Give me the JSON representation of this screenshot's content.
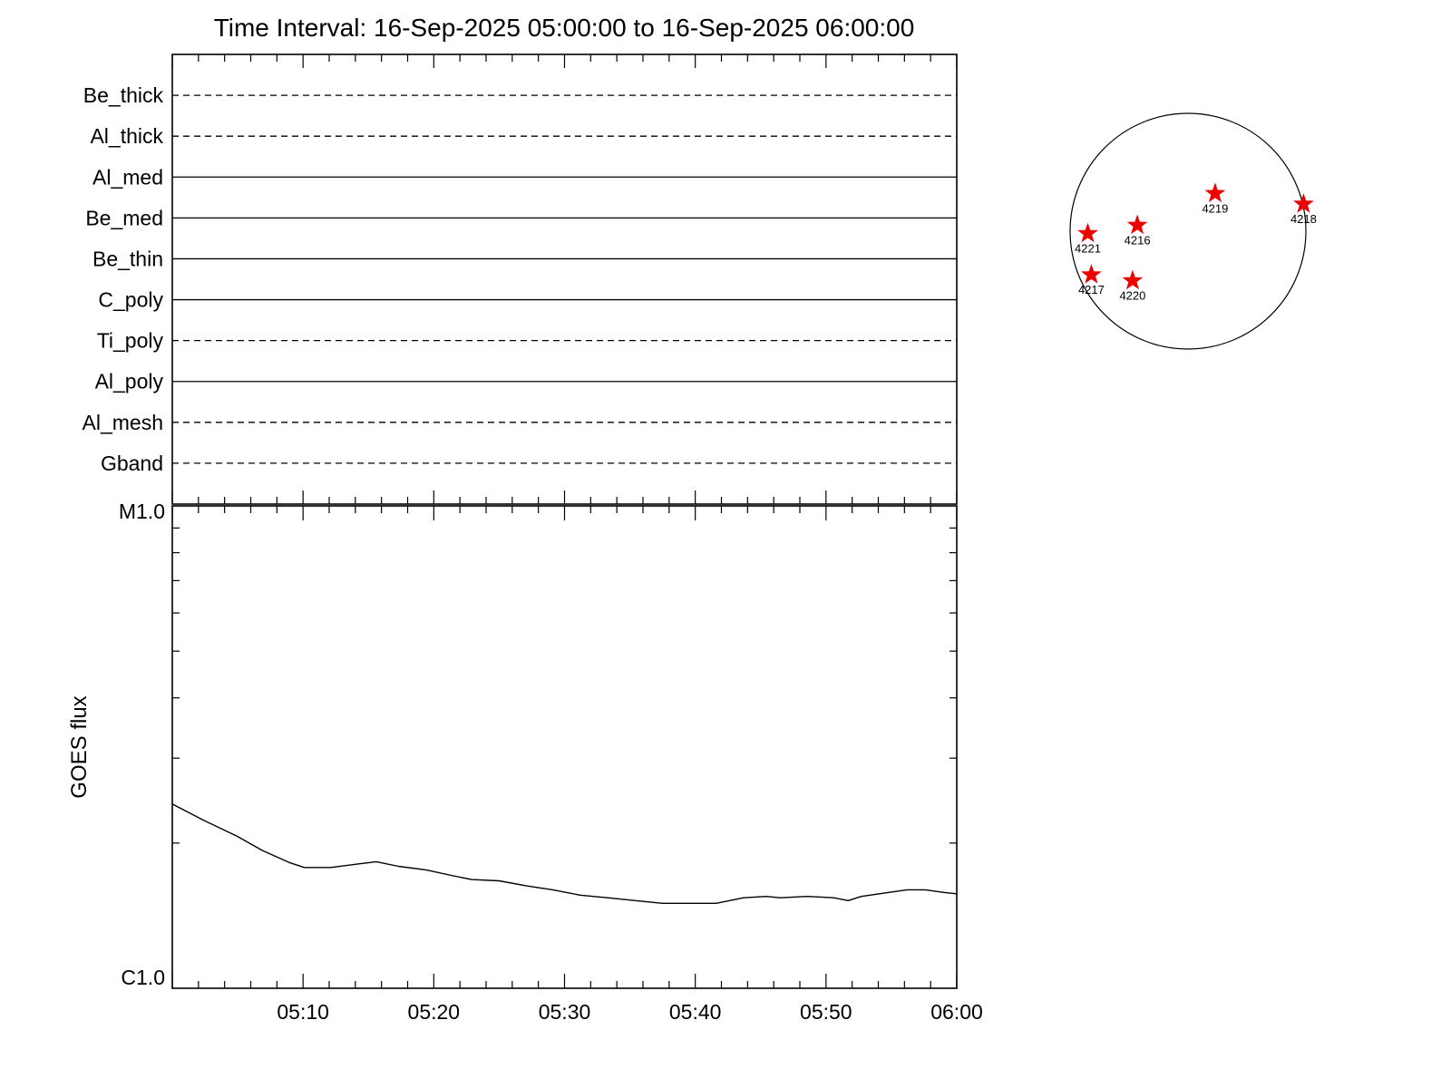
{
  "title": "Time Interval: 16-Sep-2025 05:00:00 to 16-Sep-2025 06:00:00",
  "colors": {
    "axis": "#000000",
    "flux_line": "#000000",
    "region_marker": "#ee0000"
  },
  "chart_data": [
    {
      "type": "line",
      "name": "filter-timeline",
      "x_range_minutes": [
        0,
        60
      ],
      "tick_interval_minutes": 2,
      "major_tick_interval_minutes": 10,
      "rows": [
        {
          "label": "Be_thick",
          "line_style": "dashed"
        },
        {
          "label": "Al_thick",
          "line_style": "dashed"
        },
        {
          "label": "Al_med",
          "line_style": "solid"
        },
        {
          "label": "Be_med",
          "line_style": "solid"
        },
        {
          "label": "Be_thin",
          "line_style": "solid"
        },
        {
          "label": "C_poly",
          "line_style": "solid"
        },
        {
          "label": "Ti_poly",
          "line_style": "dashed"
        },
        {
          "label": "Al_poly",
          "line_style": "solid"
        },
        {
          "label": "Al_mesh",
          "line_style": "dashed"
        },
        {
          "label": "Gband",
          "line_style": "dashed"
        }
      ]
    },
    {
      "type": "line",
      "name": "goes-flux",
      "ylabel": "GOES flux",
      "y_axis": {
        "top_label": "M1.0",
        "bottom_label": "C1.0",
        "scale": "log",
        "decades": 1
      },
      "x_ticks": [
        {
          "minute": 10,
          "label": "05:10"
        },
        {
          "minute": 20,
          "label": "05:20"
        },
        {
          "minute": 30,
          "label": "05:30"
        },
        {
          "minute": 40,
          "label": "05:40"
        },
        {
          "minute": 50,
          "label": "05:50"
        },
        {
          "minute": 60,
          "label": "06:00"
        }
      ],
      "series": [
        {
          "name": "GOES flux",
          "units": "GOES class units (C1.0 = 1, M1.0 = 10), log scale",
          "points": [
            [
              0,
              2.41
            ],
            [
              2.4,
              2.23
            ],
            [
              4.9,
              2.07
            ],
            [
              6.9,
              1.93
            ],
            [
              9.0,
              1.82
            ],
            [
              10.1,
              1.78
            ],
            [
              12.1,
              1.78
            ],
            [
              14.2,
              1.81
            ],
            [
              15.6,
              1.83
            ],
            [
              17.3,
              1.79
            ],
            [
              19.4,
              1.76
            ],
            [
              21.5,
              1.71
            ],
            [
              22.9,
              1.68
            ],
            [
              25.0,
              1.67
            ],
            [
              27.1,
              1.63
            ],
            [
              29.1,
              1.6
            ],
            [
              31.2,
              1.56
            ],
            [
              33.3,
              1.54
            ],
            [
              35.4,
              1.52
            ],
            [
              37.5,
              1.5
            ],
            [
              39.5,
              1.5
            ],
            [
              41.6,
              1.5
            ],
            [
              43.7,
              1.54
            ],
            [
              45.4,
              1.55
            ],
            [
              46.5,
              1.54
            ],
            [
              48.6,
              1.55
            ],
            [
              50.6,
              1.54
            ],
            [
              51.7,
              1.52
            ],
            [
              52.7,
              1.55
            ],
            [
              54.8,
              1.58
            ],
            [
              56.2,
              1.6
            ],
            [
              57.6,
              1.6
            ],
            [
              59.0,
              1.58
            ],
            [
              60,
              1.57
            ]
          ]
        }
      ]
    },
    {
      "type": "scatter",
      "name": "solar-disk-active-regions",
      "marker": "star",
      "marker_color": "#ee0000",
      "regions": [
        {
          "noaa": "4219",
          "x": 0.23,
          "y": -0.32
        },
        {
          "noaa": "4218",
          "x": 0.98,
          "y": -0.23
        },
        {
          "noaa": "4216",
          "x": -0.43,
          "y": -0.05
        },
        {
          "noaa": "4221",
          "x": -0.85,
          "y": 0.02
        },
        {
          "noaa": "4217",
          "x": -0.82,
          "y": 0.37
        },
        {
          "noaa": "4220",
          "x": -0.47,
          "y": 0.42
        }
      ]
    }
  ]
}
